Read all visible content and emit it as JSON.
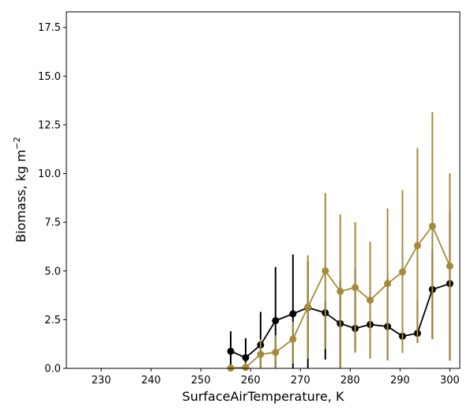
{
  "chart_data": {
    "type": "line",
    "xlabel": "SurfaceAirTemperature,  K",
    "ylabel": "Biomass,  kg m",
    "ylabel_sup": "−2",
    "xlim": [
      223,
      302
    ],
    "ylim": [
      0,
      18.3
    ],
    "xticks": [
      230,
      240,
      250,
      260,
      270,
      280,
      290,
      300
    ],
    "yticks": [
      0.0,
      2.5,
      5.0,
      7.5,
      10.0,
      12.5,
      15.0,
      17.5
    ],
    "xtick_labels": [
      "230",
      "240",
      "250",
      "260",
      "270",
      "280",
      "290",
      "300"
    ],
    "ytick_labels": [
      "0.0",
      "2.5",
      "5.0",
      "7.5",
      "10.0",
      "12.5",
      "15.0",
      "17.5"
    ],
    "grid": false,
    "legend": "none",
    "series": [
      {
        "color": "#000000",
        "x": [
          256,
          259,
          262,
          265,
          268.5,
          271.5,
          275,
          278,
          281,
          284,
          287.5,
          290.5,
          293.5,
          296.5,
          300
        ],
        "y": [
          0.88,
          0.55,
          1.2,
          2.45,
          2.8,
          3.12,
          2.85,
          2.3,
          2.05,
          2.25,
          2.15,
          1.65,
          1.8,
          4.05,
          4.35
        ],
        "err_low": [
          0.0,
          0.0,
          0.0,
          0.0,
          0.0,
          0.0,
          0.45,
          0.0,
          0.9,
          0.55,
          0.45,
          0.8,
          1.3,
          1.5,
          0.4
        ],
        "err_high": [
          1.9,
          1.55,
          2.9,
          5.2,
          5.85,
          5.5,
          3.4,
          4.5,
          5.1,
          3.0,
          4.7,
          6.5,
          3.5,
          6.1,
          8.1
        ]
      },
      {
        "color": "#a6893a",
        "x": [
          256,
          259,
          262,
          265,
          268.5,
          271.5,
          275,
          278,
          281,
          284,
          287.5,
          290.5,
          293.5,
          296.5,
          300
        ],
        "y": [
          0.02,
          0.05,
          0.72,
          0.82,
          1.5,
          3.15,
          5.0,
          3.95,
          4.15,
          3.5,
          4.35,
          4.95,
          6.3,
          7.3,
          5.25
        ],
        "err_low": [
          0.0,
          0.0,
          0.0,
          0.0,
          0.25,
          0.5,
          1.0,
          0.0,
          0.8,
          0.5,
          0.4,
          0.8,
          1.3,
          1.5,
          0.4
        ],
        "err_high": [
          0.1,
          0.3,
          1.5,
          1.7,
          2.4,
          5.8,
          9.0,
          7.9,
          7.5,
          6.5,
          8.2,
          9.15,
          11.3,
          13.15,
          10.0
        ]
      }
    ]
  }
}
